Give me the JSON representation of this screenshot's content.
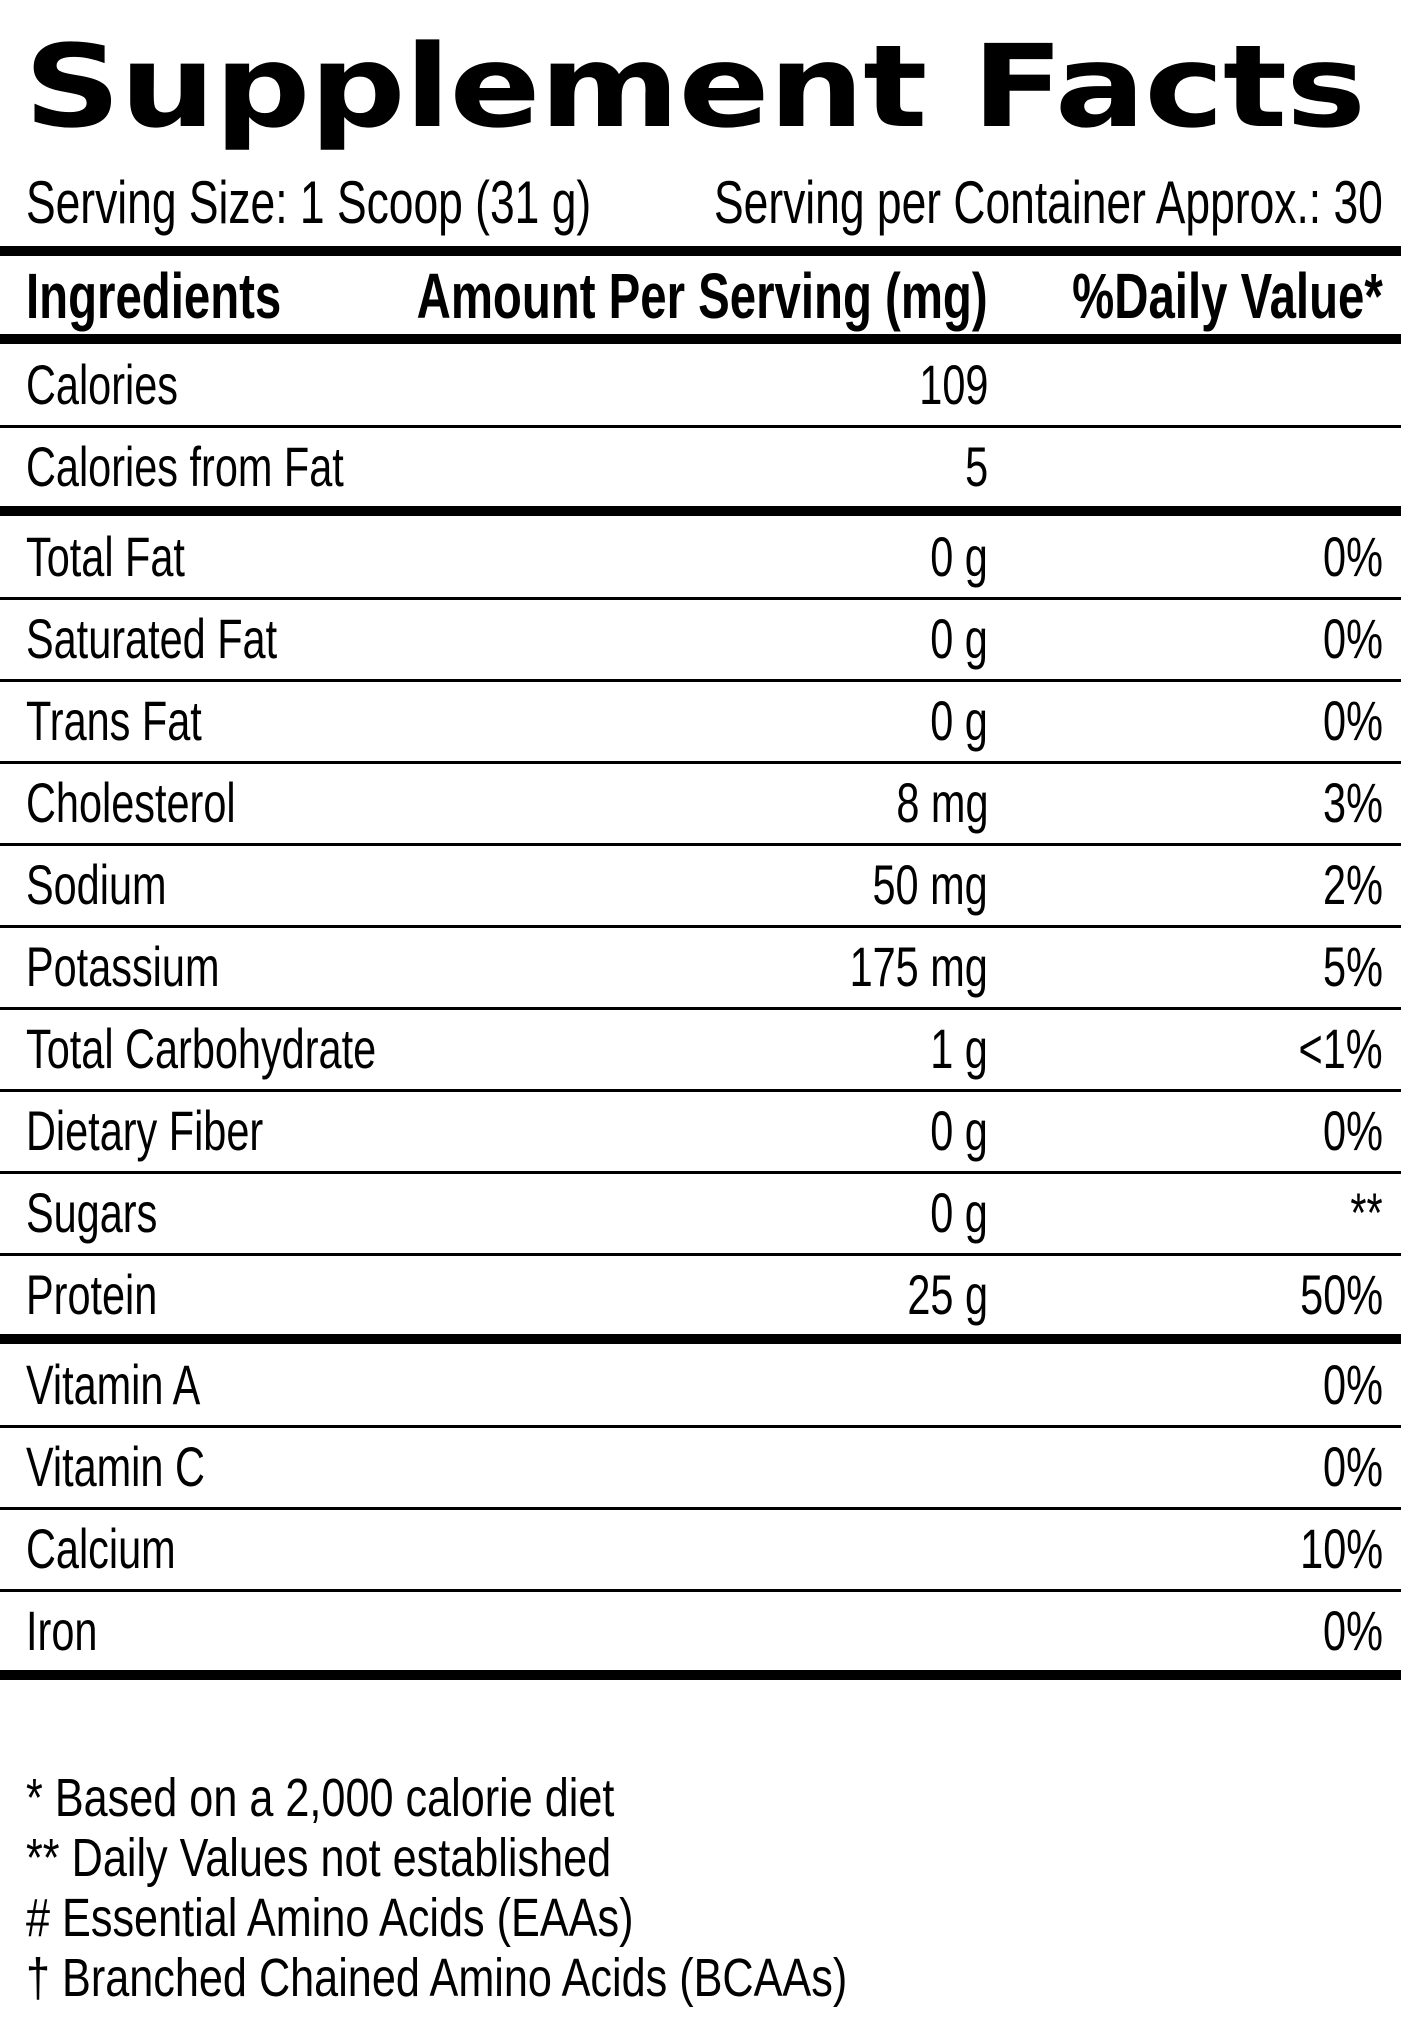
{
  "label": {
    "title": "Supplement Facts",
    "serving_size": "Serving Size: 1 Scoop (31 g)",
    "servings_per_container": "Serving per Container Approx.: 30",
    "headers": {
      "ingredients": "Ingredients",
      "amount": "Amount Per Serving (mg)",
      "daily_value": "%Daily Value*"
    },
    "rows": [
      {
        "name": "Calories",
        "amount": "109",
        "dv": ""
      },
      {
        "name": "Calories from Fat",
        "amount": "5",
        "dv": ""
      },
      {
        "name": "Total Fat",
        "amount": "0 g",
        "dv": "0%"
      },
      {
        "name": "Saturated Fat",
        "amount": "0 g",
        "dv": "0%"
      },
      {
        "name": "Trans Fat",
        "amount": "0 g",
        "dv": "0%"
      },
      {
        "name": "Cholesterol",
        "amount": "8 mg",
        "dv": "3%"
      },
      {
        "name": "Sodium",
        "amount": "50 mg",
        "dv": "2%"
      },
      {
        "name": "Potassium",
        "amount": "175 mg",
        "dv": "5%"
      },
      {
        "name": "Total Carbohydrate",
        "amount": "1 g",
        "dv": "<1%"
      },
      {
        "name": "Dietary Fiber",
        "amount": "0 g",
        "dv": "0%"
      },
      {
        "name": "Sugars",
        "amount": "0 g",
        "dv": "**"
      },
      {
        "name": "Protein",
        "amount": "25 g",
        "dv": "50%"
      },
      {
        "name": "Vitamin A",
        "amount": "",
        "dv": "0%"
      },
      {
        "name": "Vitamin C",
        "amount": "",
        "dv": "0%"
      },
      {
        "name": "Calcium",
        "amount": "",
        "dv": "10%"
      },
      {
        "name": "Iron",
        "amount": "",
        "dv": "0%"
      }
    ],
    "footnotes": [
      "* Based on a 2,000 calorie diet",
      "** Daily Values not established",
      "# Essential Amino Acids (EAAs)",
      "† Branched Chained Amino Acids (BCAAs)"
    ]
  }
}
